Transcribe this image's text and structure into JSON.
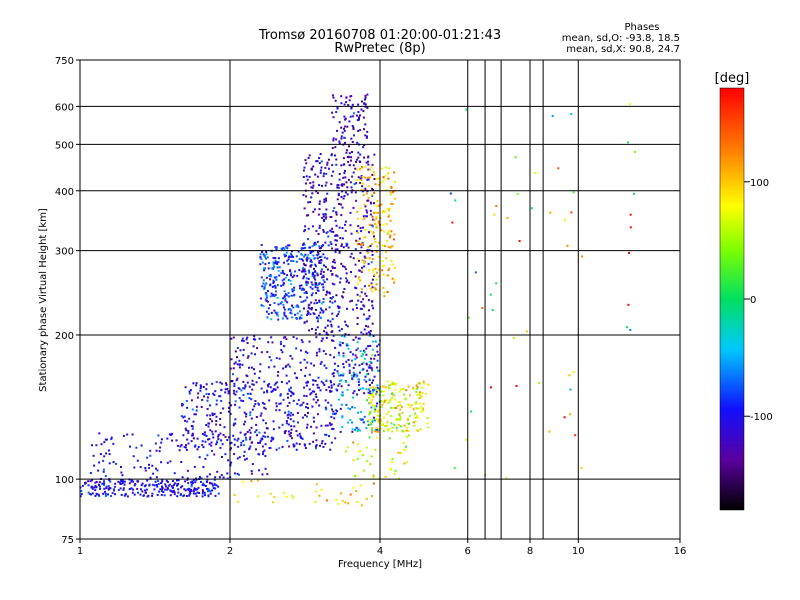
{
  "chart_data": {
    "type": "scatter",
    "title": "Tromsø 20160708 01:20:00-01:21:43",
    "subtitle": "RwPretec (8p)",
    "xlabel": "Frequency [MHz]",
    "ylabel": "Stationary phase Virtual Height [km]",
    "x_scale": "log",
    "y_scale": "log",
    "xlim": [
      1,
      16
    ],
    "ylim": [
      75,
      750
    ],
    "x_ticks": [
      1,
      2,
      4,
      6,
      8,
      10,
      16
    ],
    "x_gridlines": [
      2,
      4,
      6,
      6.5,
      7,
      8,
      8.5,
      10
    ],
    "y_ticks": [
      75,
      100,
      200,
      300,
      400,
      500,
      600,
      750
    ],
    "grid": true,
    "phase_stats": {
      "title": "Phases",
      "line_o": "mean, sd,O:  -93.8,  18.5",
      "line_x": "mean, sd,X:   90.8,  24.7"
    },
    "colorbar": {
      "label": "[deg]",
      "ticks": [
        100,
        0,
        -100
      ],
      "range": [
        -180,
        180
      ],
      "placement": "right"
    },
    "clusters": [
      {
        "fmin": 1.0,
        "fmax": 1.9,
        "hmin": 92,
        "hmax": 100,
        "phase_mean": -100,
        "phase_sd": 15,
        "count": 260
      },
      {
        "fmin": 1.05,
        "fmax": 2.4,
        "hmin": 100,
        "hmax": 125,
        "phase_mean": -105,
        "phase_sd": 15,
        "count": 170
      },
      {
        "fmin": 1.6,
        "fmax": 3.3,
        "hmin": 115,
        "hmax": 160,
        "phase_mean": -105,
        "phase_sd": 18,
        "count": 380
      },
      {
        "fmin": 2.0,
        "fmax": 4.0,
        "hmin": 150,
        "hmax": 200,
        "phase_mean": -110,
        "phase_sd": 18,
        "count": 240
      },
      {
        "fmin": 2.3,
        "fmax": 3.1,
        "hmin": 215,
        "hmax": 310,
        "phase_mean": -85,
        "phase_sd": 22,
        "count": 330
      },
      {
        "fmin": 2.8,
        "fmax": 3.9,
        "hmin": 200,
        "hmax": 480,
        "phase_mean": -115,
        "phase_sd": 20,
        "count": 480
      },
      {
        "fmin": 3.2,
        "fmax": 3.8,
        "hmin": 450,
        "hmax": 640,
        "phase_mean": -115,
        "phase_sd": 20,
        "count": 110
      },
      {
        "fmin": 3.6,
        "fmax": 4.3,
        "hmin": 240,
        "hmax": 450,
        "phase_mean": 105,
        "phase_sd": 20,
        "count": 180
      },
      {
        "fmin": 3.3,
        "fmax": 4.0,
        "hmin": 125,
        "hmax": 200,
        "phase_mean": -60,
        "phase_sd": 35,
        "count": 140
      },
      {
        "fmin": 3.8,
        "fmax": 5.0,
        "hmin": 125,
        "hmax": 160,
        "phase_mean": 75,
        "phase_sd": 30,
        "count": 200
      },
      {
        "fmin": 3.4,
        "fmax": 4.6,
        "hmin": 100,
        "hmax": 125,
        "phase_mean": 70,
        "phase_sd": 30,
        "count": 40
      },
      {
        "fmin": 2.0,
        "fmax": 4.3,
        "hmin": 88,
        "hmax": 100,
        "phase_mean": 95,
        "phase_sd": 20,
        "count": 35
      },
      {
        "fmin": 5.5,
        "fmax": 10.5,
        "hmin": 95,
        "hmax": 620,
        "phase_mean": 60,
        "phase_sd": 70,
        "count": 45
      },
      {
        "fmin": 12.5,
        "fmax": 13.0,
        "hmin": 180,
        "hmax": 620,
        "phase_mean": 110,
        "phase_sd": 70,
        "count": 10
      }
    ]
  }
}
